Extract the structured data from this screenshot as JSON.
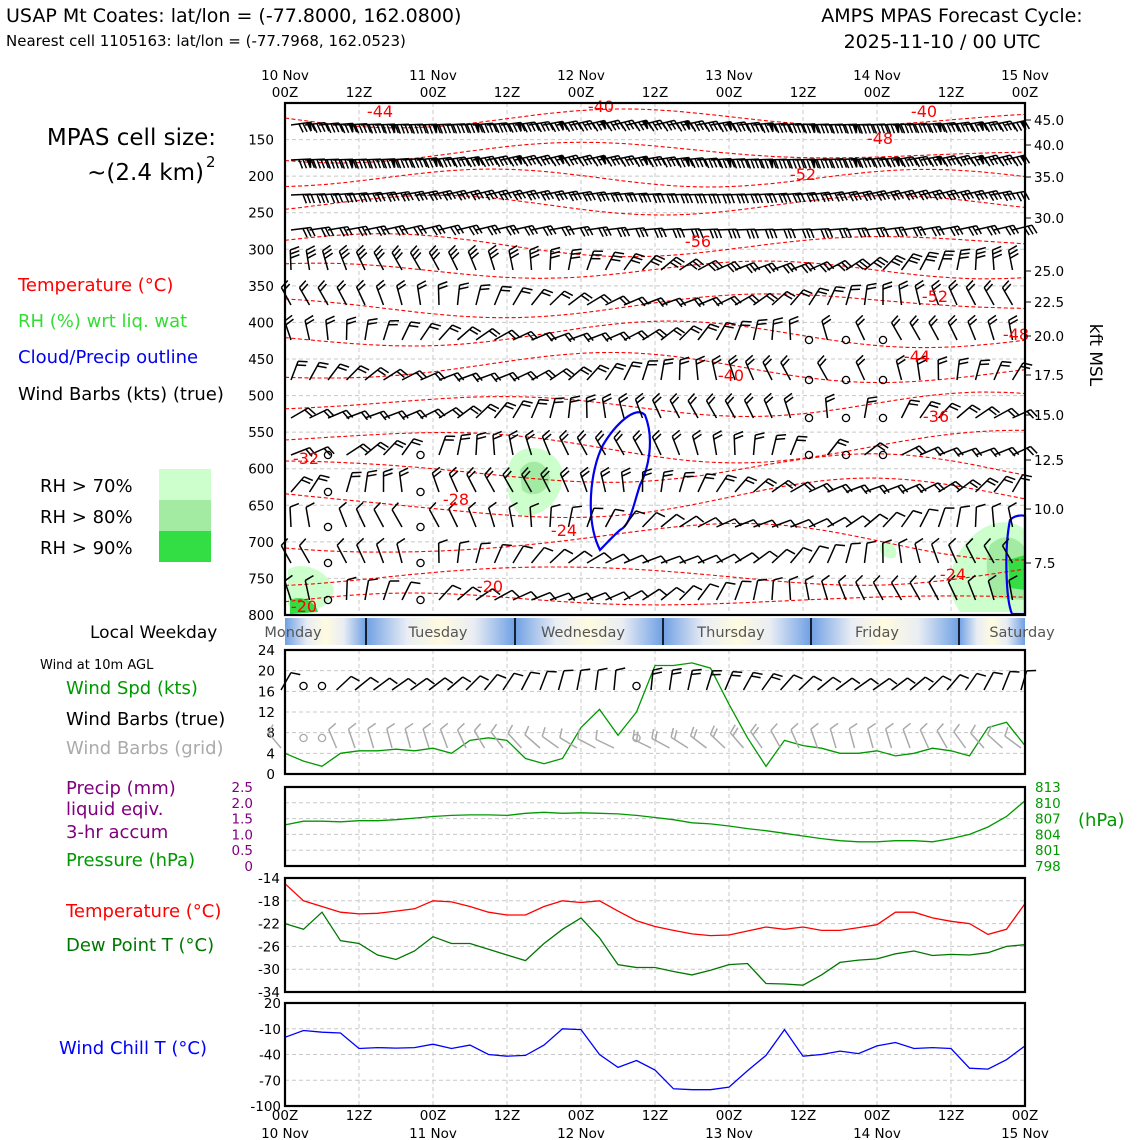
{
  "header": {
    "station_line": "USAP Mt Coates: lat/lon = (-77.8000, 162.0800)",
    "cell_line": "Nearest cell 1105163: lat/lon = (-77.7968, 162.0523)",
    "cycle_title": "AMPS MPAS Forecast Cycle:",
    "cycle_value": "2025-11-10 / 00 UTC"
  },
  "cell_size": {
    "label": "MPAS cell size:",
    "value": "~(2.4 km)",
    "exponent": "2"
  },
  "legend": {
    "temperature": "Temperature (°C)",
    "rh": "RH (%) wrt liq. wat",
    "cloud": "Cloud/Precip outline",
    "barbs": "Wind Barbs (kts) (true)",
    "rh70": "RH > 70%",
    "rh80": "RH > 80%",
    "rh90": "RH > 90%"
  },
  "colors": {
    "temperature": "#ff0000",
    "rh_text": "#33dd33",
    "cloud": "#0000ee",
    "rh70": "#ccffcc",
    "rh80": "#a3eba3",
    "rh90": "#33dd44",
    "pressure": "#009900",
    "dewpoint": "#007700",
    "precip": "#800080",
    "windchill": "#0000ff",
    "grid_barbs": "#aaaaaa"
  },
  "time_axis": {
    "top_ticks": [
      [
        "10 Nov",
        "00Z"
      ],
      [
        "",
        "12Z"
      ],
      [
        "11 Nov",
        "00Z"
      ],
      [
        "",
        "12Z"
      ],
      [
        "12 Nov",
        "00Z"
      ],
      [
        "",
        "12Z"
      ],
      [
        "13 Nov",
        "00Z"
      ],
      [
        "",
        "12Z"
      ],
      [
        "14 Nov",
        "00Z"
      ],
      [
        "",
        "12Z"
      ],
      [
        "15 Nov",
        "00Z"
      ]
    ],
    "bottom_ticks": [
      [
        "00Z",
        "10 Nov"
      ],
      [
        "12Z",
        ""
      ],
      [
        "00Z",
        "11 Nov"
      ],
      [
        "12Z",
        ""
      ],
      [
        "00Z",
        "12 Nov"
      ],
      [
        "12Z",
        ""
      ],
      [
        "00Z",
        "13 Nov"
      ],
      [
        "12Z",
        ""
      ],
      [
        "00Z",
        "14 Nov"
      ],
      [
        "12Z",
        ""
      ],
      [
        "00Z",
        "15 Nov"
      ]
    ]
  },
  "weekday": {
    "label": "Local Weekday",
    "days": [
      "Monday",
      "Tuesday",
      "Wednesday",
      "Thursday",
      "Friday",
      "Saturday"
    ]
  },
  "panel_labels": {
    "wind_at": "Wind at 10m AGL",
    "wind_spd": "Wind Spd (kts)",
    "wind_barbs_true": "Wind Barbs (true)",
    "wind_barbs_grid": "Wind Barbs (grid)",
    "precip1": "Precip (mm)",
    "precip2": "liquid eqiv.",
    "precip3": "3-hr accum",
    "pressure": "Pressure (hPa)",
    "pressure_unit": "(hPa)",
    "temp": "Temperature (°C)",
    "dew": "Dew Point T (°C)",
    "windchill": "Wind Chill T (°C)",
    "kft": "kft MSL"
  },
  "chart_data": [
    {
      "type": "heatmap",
      "title": "",
      "x_hours": [
        0,
        120
      ],
      "ylabel_left": "hPa",
      "ylabel_right": "kft MSL",
      "pressure_ticks": [
        "150",
        "200",
        "250",
        "300",
        "350",
        "400",
        "450",
        "500",
        "550",
        "600",
        "650",
        "700",
        "750",
        "800"
      ],
      "kft_ticks": [
        "45.0",
        "40.0",
        "35.0",
        "30.0",
        "25.0",
        "22.5",
        "20.0",
        "17.5",
        "15.0",
        "12.5",
        "10.0",
        "7.5"
      ],
      "temperature_contour_labels": [
        "-44",
        "-40",
        "-40",
        "-48",
        "-52",
        "-56",
        "-52",
        "-48",
        "-44",
        "-40",
        "-36",
        "-32",
        "-28",
        "-24",
        "-20",
        "-24",
        "-20"
      ]
    },
    {
      "type": "line",
      "title": "",
      "ylabel": "Wind Spd (kts)",
      "ylim": [
        0,
        24
      ],
      "yticks": [
        "0",
        "4",
        "8",
        "12",
        "16",
        "20",
        "24"
      ],
      "x": [
        0,
        3,
        6,
        9,
        12,
        15,
        18,
        21,
        24,
        27,
        30,
        33,
        36,
        39,
        42,
        45,
        48,
        51,
        54,
        57,
        60,
        63,
        66,
        69,
        72,
        75,
        78,
        81,
        84,
        87,
        90,
        93,
        96,
        99,
        102,
        105,
        108,
        111,
        114,
        117,
        120
      ],
      "series": [
        {
          "name": "Wind Spd (kts)",
          "values": [
            4,
            2.5,
            1.5,
            4,
            4.5,
            4.5,
            4.8,
            4.5,
            5,
            4,
            6.5,
            7,
            6.5,
            3,
            2,
            3,
            9,
            12.5,
            7.5,
            12,
            21,
            21,
            21.5,
            20.5,
            13.5,
            7,
            1.5,
            6.5,
            5.5,
            5,
            4,
            4,
            4.5,
            3.5,
            4,
            5,
            4.5,
            3.5,
            9,
            10,
            5.5
          ]
        }
      ]
    },
    {
      "type": "line",
      "title": "",
      "ylabel": "Precip (mm)",
      "ylim": [
        0,
        2.5
      ],
      "yticks": [
        "0",
        "0.5",
        "1.0",
        "1.5",
        "2.0",
        "2.5"
      ],
      "y2label": "(hPa)",
      "y2lim": [
        798,
        813
      ],
      "y2ticks": [
        "798",
        "801",
        "804",
        "807",
        "810",
        "813"
      ],
      "series": [
        {
          "name": "Pressure (hPa)",
          "values": [
            805.8,
            806.5,
            806.5,
            806.4,
            806.6,
            806.6,
            806.8,
            807.1,
            807.4,
            807.6,
            807.7,
            807.7,
            807.6,
            808.0,
            808.2,
            808.0,
            808.1,
            808.0,
            807.9,
            807.6,
            807.2,
            806.8,
            806.2,
            806.0,
            805.6,
            805.1,
            804.7,
            804.2,
            803.7,
            803.2,
            802.8,
            802.6,
            802.6,
            802.8,
            802.8,
            802.6,
            803.2,
            804.0,
            805.4,
            807.4,
            810.4
          ]
        },
        {
          "name": "Precip (mm)",
          "values": [
            0,
            0,
            0,
            0,
            0,
            0,
            0,
            0,
            0,
            0,
            0,
            0,
            0,
            0,
            0,
            0,
            0,
            0,
            0,
            0,
            0,
            0,
            0,
            0,
            0,
            0,
            0,
            0,
            0,
            0,
            0,
            0,
            0,
            0,
            0,
            0,
            0,
            0,
            0,
            0,
            0
          ]
        }
      ]
    },
    {
      "type": "line",
      "title": "",
      "ylabel": "Temperature (°C)",
      "ylim": [
        -34,
        -14
      ],
      "yticks": [
        "-14",
        "-18",
        "-22",
        "-26",
        "-30",
        "-34"
      ],
      "series": [
        {
          "name": "Temperature (°C)",
          "values": [
            -15,
            -18,
            -19,
            -20,
            -20.3,
            -20.2,
            -19.8,
            -19.4,
            -18,
            -18.2,
            -19,
            -20,
            -20.5,
            -20.5,
            -19,
            -18,
            -18.3,
            -18,
            -19.8,
            -21.5,
            -22.5,
            -23.2,
            -23.8,
            -24.1,
            -24,
            -23.3,
            -22.6,
            -23,
            -22.6,
            -23.2,
            -23.2,
            -22.7,
            -22.2,
            -20,
            -20,
            -21,
            -21.6,
            -22,
            -23.9,
            -23,
            -18.5
          ]
        },
        {
          "name": "Dew Point T (°C)",
          "values": [
            -22,
            -23,
            -20,
            -25,
            -25.5,
            -27.5,
            -28.3,
            -26.8,
            -24.3,
            -25.5,
            -25.5,
            -26.5,
            -27.5,
            -28.5,
            -25.5,
            -23,
            -21,
            -24.5,
            -29.2,
            -29.7,
            -29.7,
            -30.4,
            -31,
            -30.2,
            -29.2,
            -29,
            -32.5,
            -32.6,
            -32.8,
            -31,
            -28.8,
            -28.4,
            -28.2,
            -27.3,
            -26.8,
            -27.6,
            -27.4,
            -27.5,
            -27.1,
            -26,
            -25.7
          ]
        }
      ]
    },
    {
      "type": "line",
      "title": "",
      "ylabel": "Wind Chill T (°C)",
      "ylim": [
        -100,
        20
      ],
      "yticks": [
        "20",
        "-10",
        "-40",
        "-70",
        "-100"
      ],
      "series": [
        {
          "name": "Wind Chill T (°C)",
          "values": [
            -20,
            -12,
            -14,
            -15,
            -33,
            -32,
            -32.5,
            -32,
            -28,
            -33,
            -29,
            -40,
            -42,
            -41,
            -29,
            -10,
            -11,
            -40,
            -55,
            -47,
            -58,
            -80,
            -81,
            -81,
            -78,
            -59,
            -41,
            -11,
            -42,
            -40,
            -36,
            -39,
            -30,
            -26,
            -33,
            -32,
            -33,
            -56,
            -57,
            -46,
            -30
          ]
        }
      ]
    }
  ]
}
